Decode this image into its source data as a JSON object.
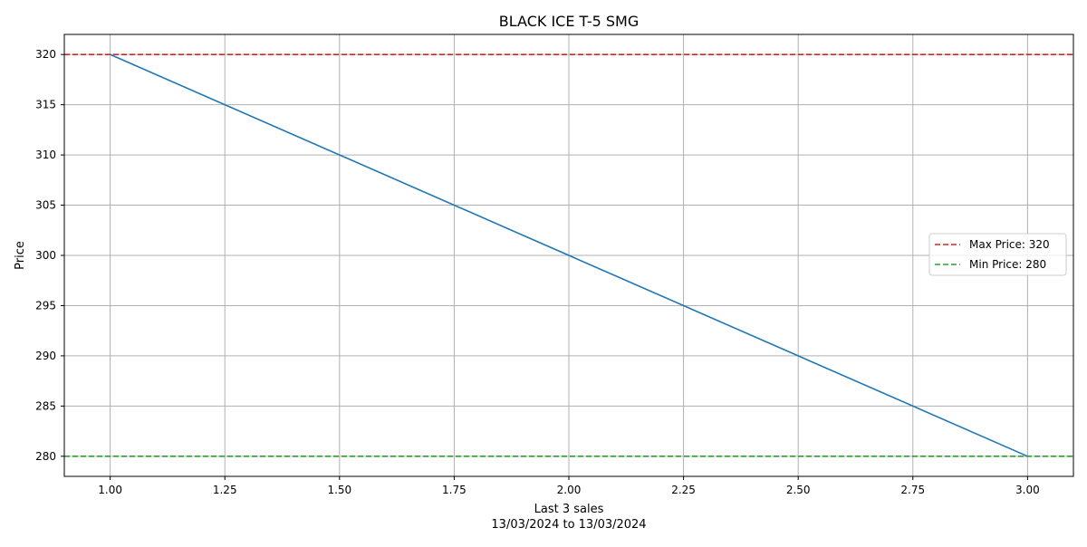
{
  "chart_data": {
    "type": "line",
    "title": "BLACK ICE T-5 SMG",
    "xlabel": "Last 3 sales",
    "xlabel_sub": "13/03/2024 to 13/03/2024",
    "ylabel": "Price",
    "xlim": [
      0.9,
      3.1
    ],
    "ylim": [
      278,
      322
    ],
    "x_ticks": [
      1.0,
      1.25,
      1.5,
      1.75,
      2.0,
      2.25,
      2.5,
      2.75,
      3.0
    ],
    "x_tick_labels": [
      "1.00",
      "1.25",
      "1.50",
      "1.75",
      "2.00",
      "2.25",
      "2.50",
      "2.75",
      "3.00"
    ],
    "y_ticks": [
      280,
      285,
      290,
      295,
      300,
      305,
      310,
      315,
      320
    ],
    "y_tick_labels": [
      "280",
      "285",
      "290",
      "295",
      "300",
      "305",
      "310",
      "315",
      "320"
    ],
    "grid": true,
    "legend_position": "center-right",
    "series": [
      {
        "x": [
          1,
          2,
          3
        ],
        "y": [
          320,
          300,
          280
        ],
        "color": "#1f77b4",
        "style": "solid"
      }
    ],
    "reference_lines": [
      {
        "name": "Max Price: 320",
        "value": 320,
        "color": "#d62728",
        "style": "dashed"
      },
      {
        "name": "Min Price: 280",
        "value": 280,
        "color": "#2ca02c",
        "style": "dashed"
      }
    ]
  }
}
